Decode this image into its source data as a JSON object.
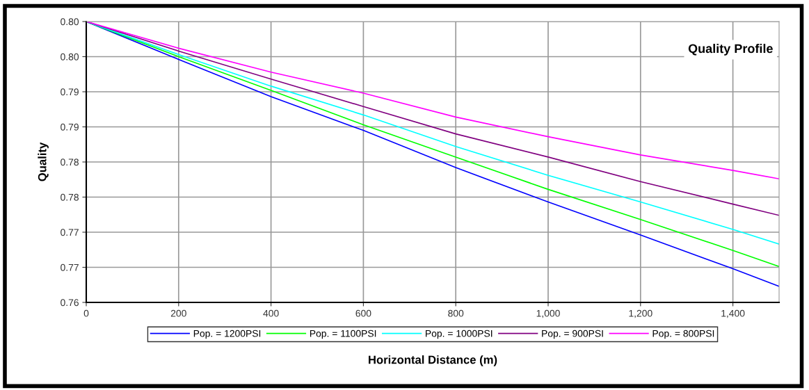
{
  "chart_data": {
    "type": "line",
    "title": "Quality Profile",
    "xlabel": "Horizontal Distance (m)",
    "ylabel": "Quality",
    "x": [
      0,
      200,
      400,
      600,
      800,
      1000,
      1200,
      1400,
      1500
    ],
    "series": [
      {
        "name": "Pop. = 1200PSI",
        "color": "#0000ff",
        "values": [
          0.8,
          0.7946,
          0.7893,
          0.7845,
          0.7792,
          0.7743,
          0.7696,
          0.7648,
          0.7623
        ]
      },
      {
        "name": "Pop. = 1100PSI",
        "color": "#00ff00",
        "values": [
          0.8,
          0.795,
          0.7902,
          0.7853,
          0.7807,
          0.7761,
          0.7718,
          0.7674,
          0.7651
        ]
      },
      {
        "name": "Pop. = 1000PSI",
        "color": "#00ffff",
        "values": [
          0.8,
          0.7953,
          0.7908,
          0.7867,
          0.7822,
          0.7781,
          0.7743,
          0.7704,
          0.7683
        ]
      },
      {
        "name": "Pop. = 900PSI",
        "color": "#800080",
        "values": [
          0.8,
          0.7958,
          0.7918,
          0.7879,
          0.784,
          0.7807,
          0.7772,
          0.774,
          0.7724
        ]
      },
      {
        "name": "Pop. = 800PSI",
        "color": "#ff00ff",
        "values": [
          0.8,
          0.7962,
          0.7928,
          0.7898,
          0.7864,
          0.7836,
          0.781,
          0.7788,
          0.7776
        ]
      }
    ],
    "xlim": [
      0,
      1500
    ],
    "xticks": [
      0,
      {
        "value": 200,
        "label": "200"
      },
      {
        "value": 400,
        "label": "400"
      },
      {
        "value": 600,
        "label": "600"
      },
      {
        "value": 800,
        "label": "800"
      },
      {
        "value": 1000,
        "label": "1,000"
      },
      {
        "value": 1200,
        "label": "1,200"
      },
      {
        "value": 1400,
        "label": "1,400"
      }
    ],
    "ylim": [
      0.76,
      0.8
    ],
    "yticks": [
      {
        "value": 0.76,
        "label": "0.76"
      },
      {
        "value": 0.765,
        "label": "0.77"
      },
      {
        "value": 0.77,
        "label": "0.77"
      },
      {
        "value": 0.775,
        "label": "0.78"
      },
      {
        "value": 0.78,
        "label": "0.78"
      },
      {
        "value": 0.785,
        "label": "0.79"
      },
      {
        "value": 0.79,
        "label": "0.79"
      },
      {
        "value": 0.795,
        "label": "0.80"
      },
      {
        "value": 0.8,
        "label": "0.80"
      }
    ],
    "grid": true,
    "legend": "bottom",
    "marker": "none",
    "line_style": "solid"
  }
}
